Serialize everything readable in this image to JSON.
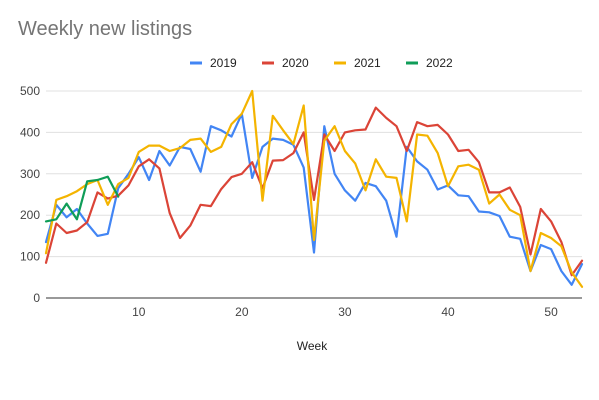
{
  "chart_data": {
    "type": "line",
    "title": "Weekly new listings",
    "xlabel": "Week",
    "ylabel": "",
    "xlim": [
      1,
      53
    ],
    "ylim": [
      0,
      500
    ],
    "x_ticks": [
      10,
      20,
      30,
      40,
      50
    ],
    "y_ticks": [
      0,
      100,
      200,
      300,
      400,
      500
    ],
    "grid": "horizontal",
    "legend_position": "top",
    "series": [
      {
        "name": "2019",
        "color": "#4285f4",
        "x": [
          1,
          2,
          3,
          4,
          5,
          6,
          7,
          8,
          9,
          10,
          11,
          12,
          13,
          14,
          15,
          16,
          17,
          18,
          19,
          20,
          21,
          22,
          23,
          24,
          25,
          26,
          27,
          28,
          29,
          30,
          31,
          32,
          33,
          34,
          35,
          36,
          37,
          38,
          39,
          40,
          41,
          42,
          43,
          44,
          45,
          46,
          47,
          48,
          49,
          50,
          51,
          52,
          53
        ],
        "values": [
          135,
          225,
          195,
          215,
          180,
          150,
          155,
          265,
          300,
          340,
          285,
          355,
          320,
          365,
          360,
          305,
          415,
          405,
          390,
          445,
          290,
          365,
          385,
          382,
          370,
          315,
          110,
          415,
          300,
          260,
          235,
          278,
          270,
          235,
          148,
          365,
          330,
          310,
          262,
          272,
          248,
          246,
          209,
          207,
          198,
          148,
          143,
          65,
          128,
          118,
          65,
          32,
          82
        ]
      },
      {
        "name": "2020",
        "color": "#db4437",
        "x": [
          1,
          2,
          3,
          4,
          5,
          6,
          7,
          8,
          9,
          10,
          11,
          12,
          13,
          14,
          15,
          16,
          17,
          18,
          19,
          20,
          21,
          22,
          23,
          24,
          25,
          26,
          27,
          28,
          29,
          30,
          31,
          32,
          33,
          34,
          35,
          36,
          37,
          38,
          39,
          40,
          41,
          42,
          43,
          44,
          45,
          46,
          47,
          48,
          49,
          50,
          51,
          52,
          53
        ],
        "values": [
          85,
          180,
          157,
          163,
          183,
          255,
          240,
          247,
          272,
          318,
          335,
          313,
          205,
          145,
          175,
          225,
          222,
          263,
          292,
          300,
          328,
          265,
          332,
          333,
          350,
          400,
          237,
          395,
          355,
          400,
          405,
          407,
          460,
          435,
          415,
          355,
          425,
          415,
          418,
          395,
          355,
          358,
          328,
          255,
          255,
          267,
          220,
          105,
          215,
          185,
          135,
          55,
          90
        ]
      },
      {
        "name": "2021",
        "color": "#f4b400",
        "x": [
          1,
          2,
          3,
          4,
          5,
          6,
          7,
          8,
          9,
          10,
          11,
          12,
          13,
          14,
          15,
          16,
          17,
          18,
          19,
          20,
          21,
          22,
          23,
          24,
          25,
          26,
          27,
          28,
          29,
          30,
          31,
          32,
          33,
          34,
          35,
          36,
          37,
          38,
          39,
          40,
          41,
          42,
          43,
          44,
          45,
          46,
          47,
          48,
          49,
          50,
          51,
          52,
          53
        ],
        "values": [
          108,
          237,
          246,
          258,
          275,
          285,
          225,
          275,
          290,
          353,
          368,
          368,
          355,
          362,
          382,
          385,
          353,
          365,
          420,
          445,
          500,
          235,
          440,
          405,
          372,
          465,
          140,
          380,
          415,
          355,
          325,
          260,
          335,
          293,
          290,
          185,
          395,
          392,
          350,
          270,
          318,
          322,
          310,
          228,
          250,
          213,
          200,
          65,
          157,
          145,
          125,
          62,
          27
        ]
      },
      {
        "name": "2022",
        "color": "#0f9d58",
        "x": [
          1,
          2,
          3,
          4,
          5,
          6,
          7,
          8
        ],
        "values": [
          185,
          190,
          228,
          190,
          282,
          285,
          293,
          245
        ]
      }
    ]
  }
}
